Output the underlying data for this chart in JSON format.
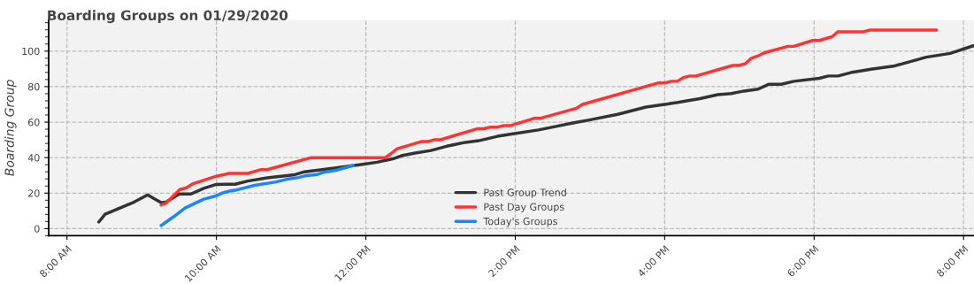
{
  "chart_data": {
    "type": "line",
    "title": "Boarding Groups on 01/29/2020",
    "ylabel": "Boarding Group",
    "xlim": [
      7.755,
      20.14
    ],
    "ylim": [
      -4,
      117.6
    ],
    "xticks": [
      {
        "value": 8,
        "label": "8:00 AM"
      },
      {
        "value": 10,
        "label": "10:00 AM"
      },
      {
        "value": 12,
        "label": "12:00 PM"
      },
      {
        "value": 14,
        "label": "2:00 PM"
      },
      {
        "value": 16,
        "label": "4:00 PM"
      },
      {
        "value": 18,
        "label": "6:00 PM"
      },
      {
        "value": 20,
        "label": "8:00 PM"
      }
    ],
    "yticks": [
      0,
      20,
      40,
      60,
      80,
      100
    ],
    "grid": true,
    "legend": "bottom",
    "marker": "none",
    "line_style": "solid",
    "series": [
      {
        "name": "Past Group Trend",
        "color": "#333333",
        "x": [
          8.425,
          8.51,
          8.9,
          9.08,
          9.17,
          9.26,
          9.33,
          9.5,
          9.66,
          9.83,
          10.0,
          10.25,
          10.42,
          10.68,
          11.05,
          11.18,
          11.6,
          12.0,
          12.15,
          12.36,
          12.49,
          12.66,
          12.87,
          13.08,
          13.33,
          13.51,
          13.76,
          13.97,
          14.31,
          14.56,
          14.77,
          14.99,
          15.37,
          15.75,
          16.04,
          16.26,
          16.47,
          16.71,
          16.89,
          17.06,
          17.25,
          17.39,
          17.56,
          17.73,
          18.07,
          18.19,
          18.32,
          18.49,
          18.78,
          19.08,
          19.5,
          19.82,
          20.13
        ],
        "values": [
          3.7,
          8.1,
          15,
          19,
          16.8,
          14.6,
          15,
          19.5,
          19.5,
          22.7,
          24.9,
          25,
          26.8,
          28.6,
          30.4,
          32,
          34.2,
          36.5,
          37.4,
          39.3,
          41.2,
          42.6,
          44,
          46.4,
          48.6,
          49.5,
          52,
          53.4,
          55.6,
          57.7,
          59.5,
          61.2,
          64.4,
          68.5,
          70.2,
          71.7,
          73.2,
          75.5,
          76.1,
          77.5,
          78.6,
          81.3,
          81.3,
          83,
          84.7,
          86,
          86,
          87.9,
          89.9,
          91.7,
          96.6,
          98.7,
          103
        ]
      },
      {
        "name": "Past Day Groups",
        "color": "#ff3333",
        "x": [
          9.26,
          9.32,
          9.51,
          9.6,
          9.68,
          10.0,
          10.17,
          10.42,
          10.59,
          10.68,
          11.27,
          12.26,
          12.32,
          12.42,
          12.74,
          12.83,
          12.91,
          12.99,
          13.5,
          13.58,
          13.67,
          13.76,
          13.85,
          13.93,
          14.25,
          14.33,
          14.82,
          14.9,
          15.92,
          16.0,
          16.09,
          16.17,
          16.25,
          16.34,
          16.42,
          16.91,
          16.99,
          17.08,
          17.16,
          17.25,
          17.33,
          17.65,
          17.73,
          17.98,
          18.07,
          18.24,
          18.32,
          18.66,
          18.75,
          19.64
        ],
        "values": [
          13.3,
          14.2,
          22,
          23,
          25.2,
          29.5,
          31.1,
          31.1,
          33.2,
          33.2,
          40,
          40,
          41.7,
          45,
          49,
          49,
          50,
          50,
          56.3,
          56.3,
          57.2,
          57.2,
          58,
          58,
          62.1,
          62.1,
          67.8,
          70,
          82.1,
          82.1,
          83,
          83,
          85.1,
          86,
          86,
          91.9,
          91.9,
          92.9,
          96,
          97.3,
          99,
          102.7,
          102.7,
          106,
          106,
          108.1,
          110.9,
          110.9,
          111.9,
          111.9
        ]
      },
      {
        "name": "Today's Groups",
        "color": "#1a85ff",
        "x": [
          9.26,
          9.43,
          9.58,
          9.71,
          9.83,
          10.0,
          10.08,
          10.17,
          10.25,
          10.51,
          10.8,
          10.93,
          11.1,
          11.18,
          11.35,
          11.43,
          11.6,
          11.83
        ],
        "values": [
          1.7,
          6.8,
          11.6,
          14.2,
          16.6,
          18.5,
          20.1,
          21.1,
          21.6,
          24.4,
          26.3,
          27.7,
          28.8,
          29.7,
          30.5,
          31.7,
          32.8,
          35.6
        ]
      }
    ]
  }
}
